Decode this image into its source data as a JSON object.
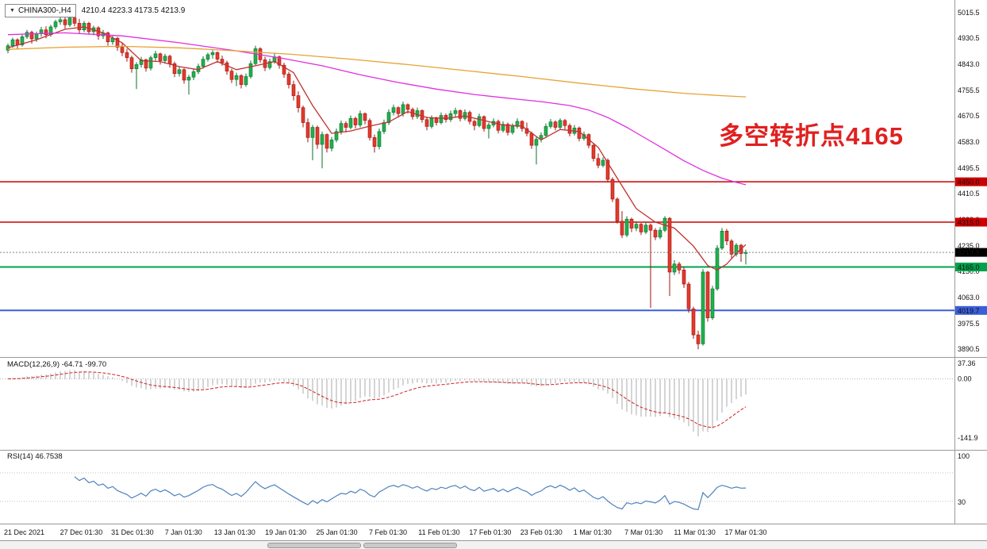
{
  "header": {
    "symbol": "CHINA300-,H4",
    "ohlc": "4210.4 4223.3 4173.5 4213.9",
    "dropdown_icon": "▼"
  },
  "annotation": {
    "text": "多空转折点4165",
    "color": "#e02020"
  },
  "colors": {
    "up": "#1fb14c",
    "up_border": "#0c6e2e",
    "down": "#e33a2c",
    "down_border": "#9c1410",
    "macd_hist": "#ababab",
    "macd_signal": "#cc2222",
    "rsi_line": "#4f81bd",
    "axis_text": "#111111",
    "divider": "#9a9a9a"
  },
  "current_price": {
    "value": 4213.9,
    "label": "4213.9",
    "tag_color": "#000000",
    "line_color": "#888888"
  },
  "levels": [
    {
      "price": 4450.0,
      "label": "4450.0",
      "color": "#cc0000",
      "width": 1.6
    },
    {
      "price": 4315.0,
      "label": "4315.0",
      "color": "#cc0000",
      "width": 1.6
    },
    {
      "price": 4165.0,
      "label": "4165.0",
      "color": "#00a14b",
      "width": 2
    },
    {
      "price": 4019.7,
      "label": "4019.7",
      "color": "#3a5fd9",
      "width": 2
    }
  ],
  "chart_data": {
    "type": "candlestick",
    "symbol": "CHINA300-",
    "timeframe": "H4",
    "x_labels": [
      "21 Dec 2021",
      "27 Dec 01:30",
      "31 Dec 01:30",
      "7 Jan 01:30",
      "13 Jan 01:30",
      "19 Jan 01:30",
      "25 Jan 01:30",
      "7 Feb 01:30",
      "11 Feb 01:30",
      "17 Feb 01:30",
      "23 Feb 01:30",
      "1 Mar 01:30",
      "7 Mar 01:30",
      "11 Mar 01:30",
      "17 Mar 01:30"
    ],
    "y_axis": {
      "ticks": [
        5015.5,
        4930.5,
        4843.0,
        4755.5,
        4670.5,
        4583.0,
        4495.5,
        4410.5,
        4323.0,
        4235.0,
        4150.0,
        4063.0,
        3975.5,
        3890.5
      ]
    },
    "candles": [
      [
        4890,
        4912,
        4880,
        4905
      ],
      [
        4905,
        4932,
        4898,
        4925
      ],
      [
        4925,
        4930,
        4892,
        4908
      ],
      [
        4908,
        4942,
        4902,
        4935
      ],
      [
        4935,
        4958,
        4928,
        4950
      ],
      [
        4950,
        4955,
        4912,
        4928
      ],
      [
        4928,
        4952,
        4918,
        4945
      ],
      [
        4945,
        4968,
        4935,
        4958
      ],
      [
        4958,
        4970,
        4930,
        4942
      ],
      [
        4942,
        4975,
        4935,
        4968
      ],
      [
        4968,
        4992,
        4960,
        4985
      ],
      [
        4985,
        5002,
        4975,
        4992
      ],
      [
        4992,
        5010,
        4962,
        4975
      ],
      [
        4975,
        5008,
        4968,
        4998
      ],
      [
        4998,
        5005,
        4970,
        4980
      ],
      [
        4980,
        4995,
        4945,
        4958
      ],
      [
        4958,
        4988,
        4950,
        4980
      ],
      [
        4980,
        4985,
        4942,
        4952
      ],
      [
        4952,
        4972,
        4940,
        4965
      ],
      [
        4965,
        4970,
        4925,
        4938
      ],
      [
        4938,
        4958,
        4928,
        4948
      ],
      [
        4948,
        4952,
        4905,
        4918
      ],
      [
        4918,
        4940,
        4908,
        4930
      ],
      [
        4930,
        4935,
        4888,
        4900
      ],
      [
        4900,
        4915,
        4870,
        4882
      ],
      [
        4882,
        4895,
        4852,
        4865
      ],
      [
        4865,
        4872,
        4815,
        4828
      ],
      [
        4828,
        4850,
        4760,
        4842
      ],
      [
        4842,
        4868,
        4832,
        4858
      ],
      [
        4858,
        4862,
        4818,
        4830
      ],
      [
        4830,
        4872,
        4822,
        4865
      ],
      [
        4865,
        4888,
        4855,
        4878
      ],
      [
        4878,
        4882,
        4842,
        4855
      ],
      [
        4855,
        4878,
        4845,
        4870
      ],
      [
        4870,
        4875,
        4832,
        4845
      ],
      [
        4845,
        4852,
        4800,
        4812
      ],
      [
        4812,
        4835,
        4802,
        4825
      ],
      [
        4825,
        4830,
        4778,
        4790
      ],
      [
        4790,
        4808,
        4742,
        4800
      ],
      [
        4800,
        4828,
        4790,
        4818
      ],
      [
        4818,
        4845,
        4810,
        4836
      ],
      [
        4836,
        4870,
        4828,
        4860
      ],
      [
        4860,
        4882,
        4852,
        4875
      ],
      [
        4875,
        4890,
        4862,
        4882
      ],
      [
        4882,
        4886,
        4848,
        4860
      ],
      [
        4860,
        4872,
        4838,
        4848
      ],
      [
        4848,
        4855,
        4808,
        4820
      ],
      [
        4820,
        4828,
        4780,
        4792
      ],
      [
        4792,
        4815,
        4770,
        4805
      ],
      [
        4805,
        4810,
        4762,
        4775
      ],
      [
        4775,
        4812,
        4768,
        4802
      ],
      [
        4802,
        4855,
        4795,
        4845
      ],
      [
        4845,
        4905,
        4840,
        4895
      ],
      [
        4895,
        4900,
        4848,
        4858
      ],
      [
        4858,
        4868,
        4820,
        4832
      ],
      [
        4832,
        4862,
        4825,
        4852
      ],
      [
        4852,
        4880,
        4845,
        4868
      ],
      [
        4868,
        4872,
        4828,
        4840
      ],
      [
        4840,
        4848,
        4798,
        4810
      ],
      [
        4810,
        4818,
        4762,
        4775
      ],
      [
        4775,
        4788,
        4722,
        4738
      ],
      [
        4738,
        4752,
        4682,
        4698
      ],
      [
        4698,
        4705,
        4632,
        4648
      ],
      [
        4648,
        4662,
        4582,
        4598
      ],
      [
        4598,
        4640,
        4522,
        4632
      ],
      [
        4632,
        4638,
        4560,
        4575
      ],
      [
        4575,
        4618,
        4495,
        4608
      ],
      [
        4608,
        4612,
        4548,
        4562
      ],
      [
        4562,
        4600,
        4552,
        4590
      ],
      [
        4590,
        4628,
        4582,
        4618
      ],
      [
        4618,
        4655,
        4608,
        4645
      ],
      [
        4645,
        4652,
        4615,
        4632
      ],
      [
        4632,
        4672,
        4625,
        4662
      ],
      [
        4662,
        4668,
        4628,
        4640
      ],
      [
        4640,
        4688,
        4632,
        4678
      ],
      [
        4678,
        4682,
        4642,
        4655
      ],
      [
        4655,
        4662,
        4588,
        4598
      ],
      [
        4598,
        4608,
        4548,
        4568
      ],
      [
        4568,
        4628,
        4558,
        4618
      ],
      [
        4618,
        4658,
        4610,
        4648
      ],
      [
        4648,
        4692,
        4640,
        4682
      ],
      [
        4682,
        4708,
        4672,
        4698
      ],
      [
        4698,
        4702,
        4665,
        4678
      ],
      [
        4678,
        4718,
        4668,
        4708
      ],
      [
        4708,
        4712,
        4678,
        4692
      ],
      [
        4692,
        4698,
        4658,
        4668
      ],
      [
        4668,
        4698,
        4660,
        4688
      ],
      [
        4688,
        4692,
        4648,
        4658
      ],
      [
        4658,
        4668,
        4622,
        4635
      ],
      [
        4635,
        4672,
        4628,
        4662
      ],
      [
        4662,
        4668,
        4638,
        4648
      ],
      [
        4648,
        4682,
        4642,
        4672
      ],
      [
        4672,
        4678,
        4648,
        4658
      ],
      [
        4658,
        4688,
        4650,
        4678
      ],
      [
        4678,
        4698,
        4668,
        4688
      ],
      [
        4688,
        4692,
        4652,
        4662
      ],
      [
        4662,
        4692,
        4655,
        4682
      ],
      [
        4682,
        4688,
        4642,
        4652
      ],
      [
        4652,
        4658,
        4622,
        4638
      ],
      [
        4638,
        4678,
        4632,
        4668
      ],
      [
        4668,
        4672,
        4618,
        4628
      ],
      [
        4628,
        4648,
        4595,
        4640
      ],
      [
        4640,
        4662,
        4632,
        4652
      ],
      [
        4652,
        4658,
        4612,
        4622
      ],
      [
        4622,
        4652,
        4615,
        4642
      ],
      [
        4642,
        4648,
        4605,
        4615
      ],
      [
        4615,
        4645,
        4608,
        4635
      ],
      [
        4635,
        4662,
        4628,
        4652
      ],
      [
        4652,
        4656,
        4618,
        4628
      ],
      [
        4628,
        4648,
        4602,
        4612
      ],
      [
        4612,
        4618,
        4560,
        4572
      ],
      [
        4572,
        4602,
        4508,
        4592
      ],
      [
        4592,
        4615,
        4582,
        4605
      ],
      [
        4605,
        4645,
        4598,
        4635
      ],
      [
        4635,
        4660,
        4628,
        4650
      ],
      [
        4650,
        4655,
        4622,
        4632
      ],
      [
        4632,
        4662,
        4625,
        4655
      ],
      [
        4655,
        4660,
        4625,
        4638
      ],
      [
        4638,
        4645,
        4602,
        4612
      ],
      [
        4612,
        4640,
        4605,
        4630
      ],
      [
        4630,
        4635,
        4585,
        4595
      ],
      [
        4595,
        4618,
        4588,
        4608
      ],
      [
        4608,
        4612,
        4562,
        4572
      ],
      [
        4572,
        4580,
        4518,
        4528
      ],
      [
        4528,
        4545,
        4495,
        4505
      ],
      [
        4505,
        4532,
        4498,
        4522
      ],
      [
        4522,
        4528,
        4448,
        4458
      ],
      [
        4458,
        4465,
        4382,
        4392
      ],
      [
        4392,
        4398,
        4310,
        4318
      ],
      [
        4318,
        4352,
        4262,
        4272
      ],
      [
        4272,
        4335,
        4265,
        4325
      ],
      [
        4325,
        4330,
        4282,
        4295
      ],
      [
        4295,
        4318,
        4285,
        4308
      ],
      [
        4308,
        4312,
        4272,
        4282
      ],
      [
        4282,
        4315,
        4275,
        4305
      ],
      [
        4305,
        4310,
        4028,
        4288
      ],
      [
        4288,
        4295,
        4255,
        4265
      ],
      [
        4265,
        4298,
        4258,
        4288
      ],
      [
        4288,
        4335,
        4282,
        4328
      ],
      [
        4328,
        4332,
        4068,
        4148
      ],
      [
        4148,
        4188,
        4138,
        4175
      ],
      [
        4175,
        4182,
        4142,
        4155
      ],
      [
        4155,
        4165,
        4095,
        4108
      ],
      [
        4108,
        4115,
        4012,
        4025
      ],
      [
        4025,
        4032,
        3925,
        3938
      ],
      [
        3938,
        3952,
        3890,
        3908
      ],
      [
        3908,
        4158,
        3902,
        4148
      ],
      [
        4148,
        4152,
        3982,
        3995
      ],
      [
        3995,
        4102,
        3988,
        4092
      ],
      [
        4092,
        4238,
        4086,
        4228
      ],
      [
        4228,
        4295,
        4222,
        4285
      ],
      [
        4285,
        4292,
        4238,
        4252
      ],
      [
        4252,
        4258,
        4195,
        4208
      ],
      [
        4208,
        4245,
        4200,
        4238
      ],
      [
        4238,
        4242,
        4182,
        4210
      ],
      [
        4210.4,
        4223.3,
        4173.5,
        4213.9
      ]
    ],
    "moving_averages": [
      {
        "name": "fast",
        "color": "#c03030",
        "points": [
          [
            0,
            4898
          ],
          [
            6,
            4925
          ],
          [
            12,
            4960
          ],
          [
            16,
            4968
          ],
          [
            20,
            4948
          ],
          [
            24,
            4915
          ],
          [
            28,
            4855
          ],
          [
            32,
            4852
          ],
          [
            36,
            4835
          ],
          [
            40,
            4825
          ],
          [
            44,
            4852
          ],
          [
            48,
            4825
          ],
          [
            52,
            4838
          ],
          [
            56,
            4852
          ],
          [
            60,
            4815
          ],
          [
            64,
            4705
          ],
          [
            68,
            4612
          ],
          [
            72,
            4620
          ],
          [
            76,
            4636
          ],
          [
            80,
            4650
          ],
          [
            84,
            4685
          ],
          [
            88,
            4665
          ],
          [
            92,
            4662
          ],
          [
            96,
            4670
          ],
          [
            100,
            4655
          ],
          [
            104,
            4640
          ],
          [
            108,
            4636
          ],
          [
            112,
            4590
          ],
          [
            116,
            4625
          ],
          [
            120,
            4618
          ],
          [
            124,
            4565
          ],
          [
            128,
            4462
          ],
          [
            132,
            4360
          ],
          [
            136,
            4315
          ],
          [
            140,
            4295
          ],
          [
            144,
            4235
          ],
          [
            147,
            4170
          ],
          [
            149,
            4155
          ],
          [
            151,
            4175
          ],
          [
            153,
            4210
          ],
          [
            155,
            4240
          ]
        ]
      },
      {
        "name": "medium",
        "color": "#df2fdf",
        "points": [
          [
            0,
            4942
          ],
          [
            12,
            4948
          ],
          [
            24,
            4938
          ],
          [
            36,
            4915
          ],
          [
            48,
            4888
          ],
          [
            58,
            4862
          ],
          [
            66,
            4838
          ],
          [
            74,
            4808
          ],
          [
            82,
            4782
          ],
          [
            90,
            4760
          ],
          [
            98,
            4742
          ],
          [
            106,
            4728
          ],
          [
            112,
            4718
          ],
          [
            118,
            4705
          ],
          [
            122,
            4690
          ],
          [
            126,
            4665
          ],
          [
            130,
            4632
          ],
          [
            134,
            4595
          ],
          [
            138,
            4558
          ],
          [
            142,
            4520
          ],
          [
            146,
            4488
          ],
          [
            150,
            4462
          ],
          [
            153,
            4448
          ],
          [
            155,
            4440
          ]
        ]
      },
      {
        "name": "slow",
        "color": "#e5a335",
        "points": [
          [
            0,
            4893
          ],
          [
            12,
            4900
          ],
          [
            24,
            4903
          ],
          [
            36,
            4898
          ],
          [
            48,
            4888
          ],
          [
            60,
            4876
          ],
          [
            72,
            4860
          ],
          [
            84,
            4842
          ],
          [
            96,
            4822
          ],
          [
            108,
            4802
          ],
          [
            120,
            4780
          ],
          [
            132,
            4760
          ],
          [
            142,
            4746
          ],
          [
            150,
            4738
          ],
          [
            155,
            4734
          ]
        ]
      }
    ],
    "indicators": [
      {
        "name": "MACD",
        "label": "MACD(12,26,9) -64.71 -99.70",
        "fast": 12,
        "slow": 26,
        "signal_period": 9,
        "main": -64.71,
        "signal": -99.7,
        "scale": [
          37.36,
          0,
          -141.9
        ],
        "scale_labels": [
          "37.36",
          "0.00",
          "-141.9"
        ]
      },
      {
        "name": "RSI",
        "label": "RSI(14) 46.7538",
        "period": 14,
        "value": 46.7538,
        "scale": [
          100,
          30
        ],
        "scale_labels": [
          "100",
          "30"
        ],
        "levels": [
          70,
          30
        ]
      }
    ]
  }
}
